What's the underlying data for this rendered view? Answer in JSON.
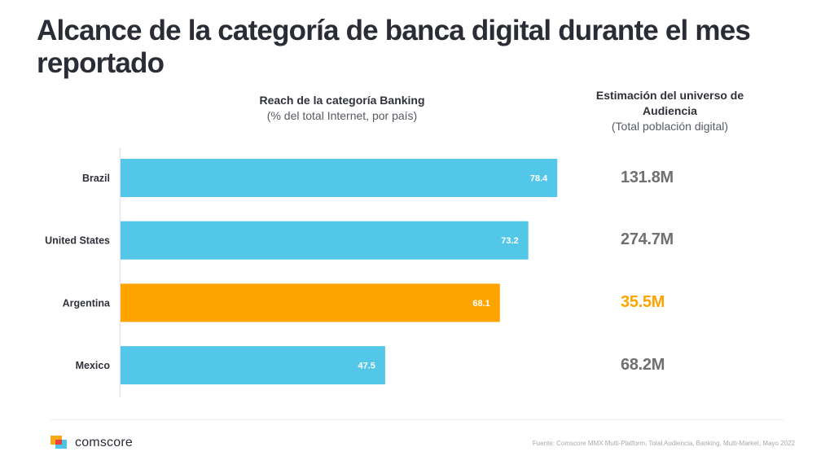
{
  "title": "Alcance de la categoría de banca digital durante el mes reportado",
  "chart_header": {
    "title": "Reach de la categoría Banking",
    "subtitle": "(% del total Internet, por país)"
  },
  "audience_header": {
    "title_line1": "Estimación del universo de",
    "title_line2": "Audiencia",
    "subtitle": "(Total población digital)"
  },
  "colors": {
    "default_bar": "#53c7e8",
    "highlight": "#ffa300",
    "audience_default": "#707070"
  },
  "chart_data": {
    "type": "bar",
    "orientation": "horizontal",
    "title": "Reach de la categoría Banking",
    "subtitle": "(% del total Internet, por país)",
    "xlabel": "",
    "ylabel": "",
    "categories": [
      "Brazil",
      "United States",
      "Argentina",
      "Mexico"
    ],
    "values": [
      78.4,
      73.2,
      68.1,
      47.5
    ],
    "value_labels": [
      "78.4",
      "73.2",
      "68.1",
      "47.5"
    ],
    "highlighted": [
      "Argentina"
    ],
    "xlim": [
      0,
      100
    ],
    "grid": false,
    "legend": "none"
  },
  "audience": [
    {
      "country": "Brazil",
      "value": "131.8M",
      "highlight": false
    },
    {
      "country": "United States",
      "value": "274.7M",
      "highlight": false
    },
    {
      "country": "Argentina",
      "value": "35.5M",
      "highlight": true
    },
    {
      "country": "Mexico",
      "value": "68.2M",
      "highlight": false
    }
  ],
  "footer": {
    "logo_text": "comscore",
    "source": "Fuente: Comscore MMX Multi-Platform, Total Audiencia, Banking, Multi-Market, Mayo 2022"
  }
}
